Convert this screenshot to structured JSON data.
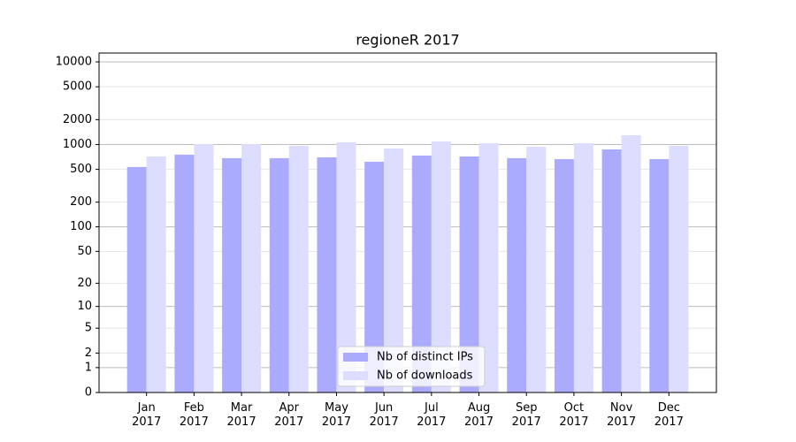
{
  "chart_data": {
    "type": "bar",
    "title": "regioneR 2017",
    "categories": [
      "Jan 2017",
      "Feb 2017",
      "Mar 2017",
      "Apr 2017",
      "May 2017",
      "Jun 2017",
      "Jul 2017",
      "Aug 2017",
      "Sep 2017",
      "Oct 2017",
      "Nov 2017",
      "Dec 2017"
    ],
    "series": [
      {
        "name": "Nb of distinct IPs",
        "color": "#aaaaff",
        "values": [
          534,
          753,
          683,
          683,
          699,
          618,
          735,
          717,
          683,
          666,
          873,
          666
        ]
      },
      {
        "name": "Nb of downloads",
        "color": "#ddddff",
        "values": [
          717,
          1012,
          1012,
          963,
          1064,
          895,
          1089,
          1037,
          940,
          1037,
          1295,
          963
        ]
      }
    ],
    "yscale": "log1p",
    "ylim": [
      0,
      12800
    ],
    "yticks": [
      0,
      1,
      2,
      5,
      10,
      20,
      50,
      100,
      200,
      500,
      1000,
      2000,
      5000,
      10000
    ],
    "grid": true,
    "legend": "lower center"
  }
}
